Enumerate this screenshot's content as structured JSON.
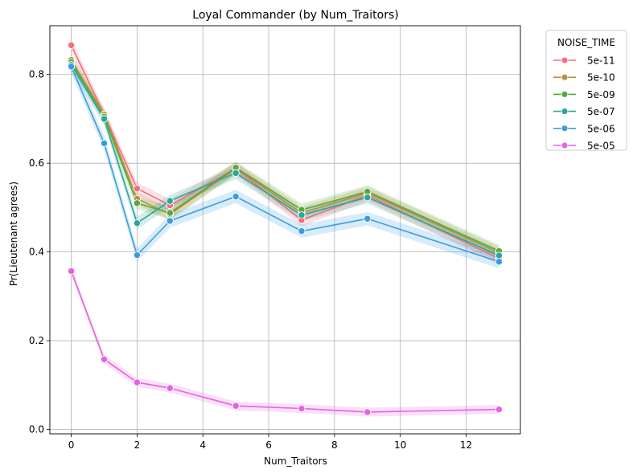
{
  "chart_data": {
    "type": "line",
    "title": "Loyal Commander (by Num_Traitors)",
    "xlabel": "Num_Traitors",
    "ylabel": "Pr(Lieutenant agrees)",
    "xlim": [
      -0.65,
      13.65
    ],
    "ylim": [
      -0.01,
      0.91
    ],
    "xticks": [
      0,
      2,
      4,
      6,
      8,
      10,
      12
    ],
    "yticks": [
      0.0,
      0.2,
      0.4,
      0.6,
      0.8
    ],
    "xtick_labels": [
      "0",
      "2",
      "4",
      "6",
      "8",
      "10",
      "12"
    ],
    "ytick_labels": [
      "0.0",
      "0.2",
      "0.4",
      "0.6",
      "0.8"
    ],
    "grid": true,
    "legend_title": "NOISE_TIME",
    "legend_position": "outside-top-right",
    "x": [
      0,
      1,
      2,
      3,
      5,
      7,
      9,
      13
    ],
    "series": [
      {
        "name": "5e-11",
        "color": "#f0707c",
        "values": [
          0.866,
          0.71,
          0.543,
          0.505,
          0.588,
          0.472,
          0.528,
          0.385
        ],
        "band": 0.014
      },
      {
        "name": "5e-10",
        "color": "#b8913c",
        "values": [
          0.833,
          0.71,
          0.52,
          0.485,
          0.588,
          0.488,
          0.533,
          0.398
        ],
        "band": 0.014
      },
      {
        "name": "5e-09",
        "color": "#58a83a",
        "values": [
          0.828,
          0.705,
          0.51,
          0.488,
          0.59,
          0.495,
          0.536,
          0.402
        ],
        "band": 0.014
      },
      {
        "name": "5e-07",
        "color": "#2aa79c",
        "values": [
          0.822,
          0.7,
          0.465,
          0.515,
          0.578,
          0.483,
          0.523,
          0.392
        ],
        "band": 0.014
      },
      {
        "name": "5e-06",
        "color": "#3b9de0",
        "values": [
          0.818,
          0.645,
          0.393,
          0.47,
          0.525,
          0.447,
          0.475,
          0.378
        ],
        "band": 0.015
      },
      {
        "name": "5e-05",
        "color": "#e663e0",
        "values": [
          0.357,
          0.158,
          0.106,
          0.093,
          0.053,
          0.047,
          0.039,
          0.045
        ],
        "band": 0.01
      }
    ]
  }
}
